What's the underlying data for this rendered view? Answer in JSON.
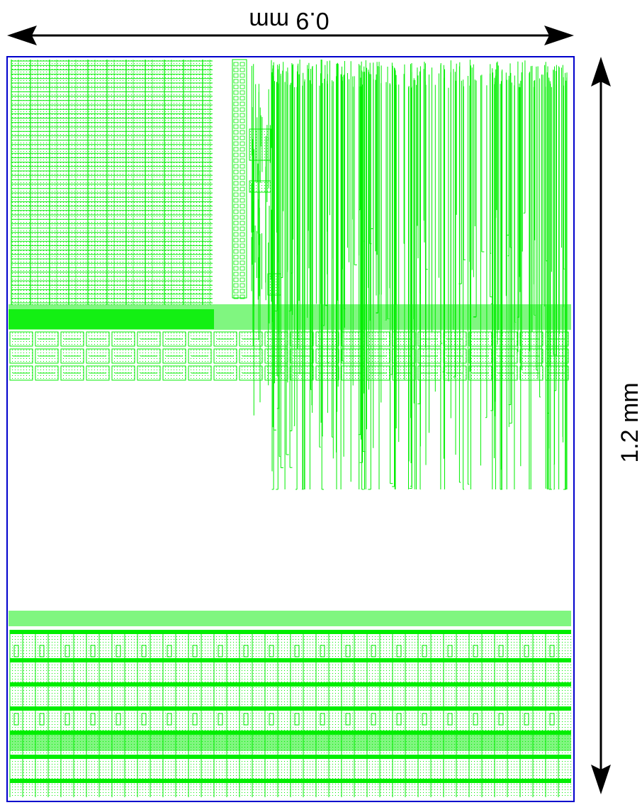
{
  "dimensions": {
    "width_label": "0.9 mm",
    "height_label": "1.2 mm"
  },
  "colors": {
    "background": "#ffffff",
    "layout": "#00ee00",
    "boundary": "#0000cc",
    "arrow": "#000000"
  }
}
